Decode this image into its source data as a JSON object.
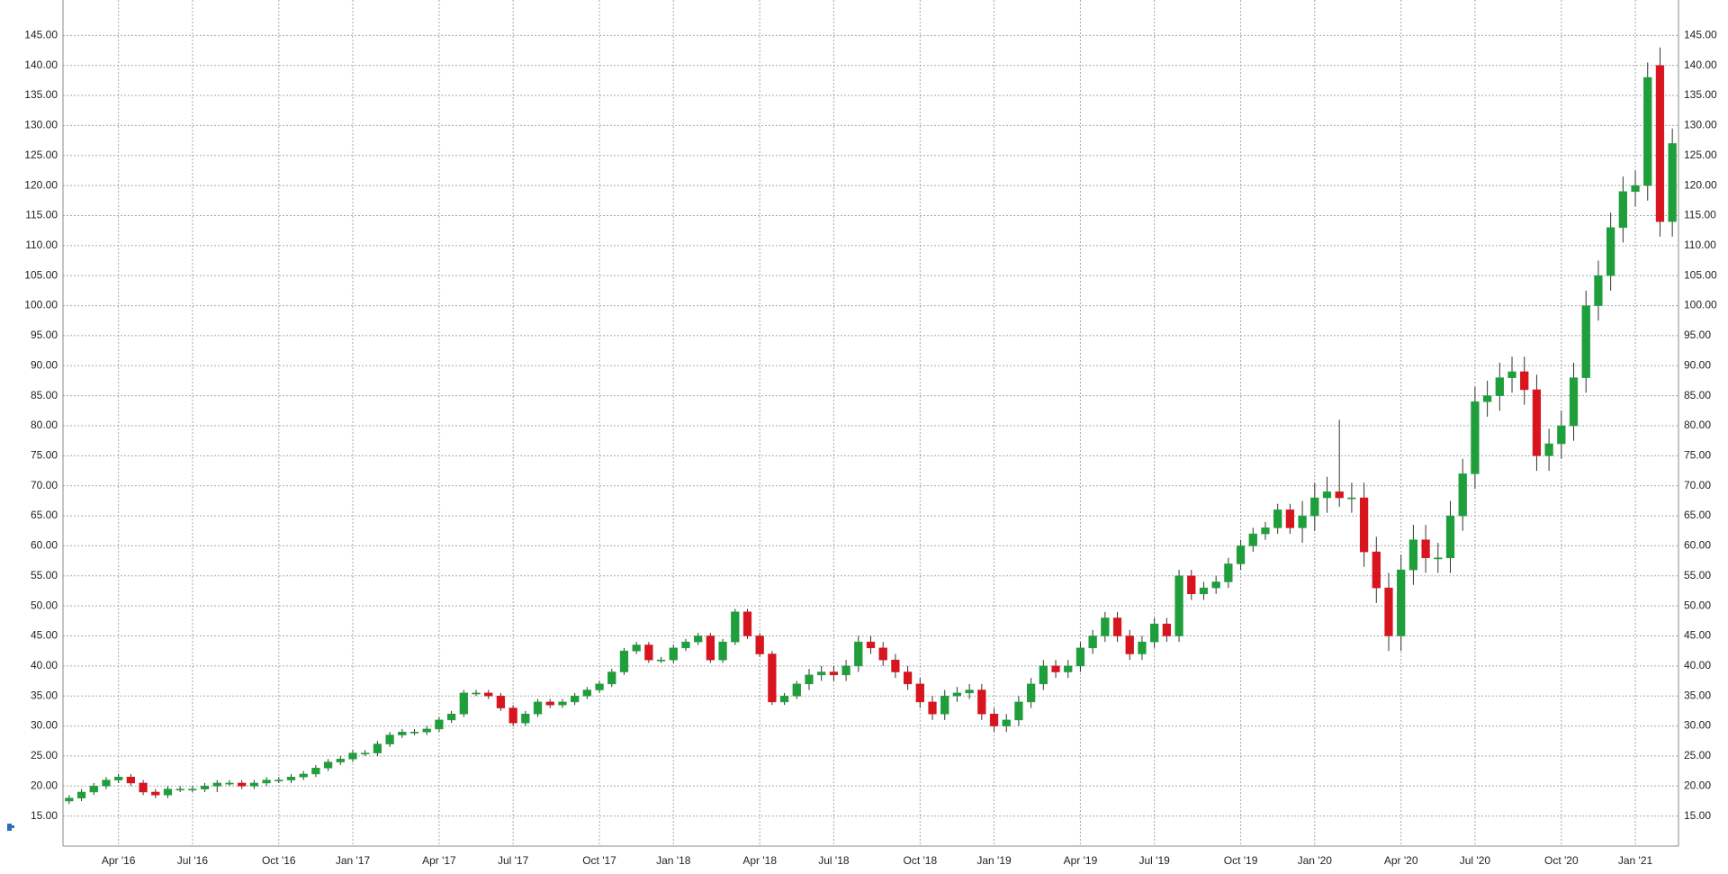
{
  "chart_data": {
    "type": "candlestick",
    "categories": [
      null,
      null,
      null,
      null,
      "Apr '16",
      null,
      null,
      null,
      null,
      null,
      "Jul '16",
      null,
      null,
      null,
      null,
      null,
      null,
      "Oct '16",
      null,
      null,
      null,
      null,
      null,
      "Jan '17",
      null,
      null,
      null,
      null,
      null,
      null,
      "Apr '17",
      null,
      null,
      null,
      null,
      null,
      "Jul '17",
      null,
      null,
      null,
      null,
      null,
      null,
      "Oct '17",
      null,
      null,
      null,
      null,
      null,
      "Jan '18",
      null,
      null,
      null,
      null,
      null,
      null,
      "Apr '18",
      null,
      null,
      null,
      null,
      null,
      "Jul '18",
      null,
      null,
      null,
      null,
      null,
      null,
      "Oct '18",
      null,
      null,
      null,
      null,
      null,
      "Jan '19",
      null,
      null,
      null,
      null,
      null,
      null,
      "Apr '19",
      null,
      null,
      null,
      null,
      null,
      "Jul '19",
      null,
      null,
      null,
      null,
      null,
      null,
      "Oct '19",
      null,
      null,
      null,
      null,
      null,
      "Jan '20",
      null,
      null,
      null,
      null,
      null,
      null,
      "Apr '20",
      null,
      null,
      null,
      null,
      null,
      "Jul '20",
      null,
      null,
      null,
      null,
      null,
      null,
      "Oct '20",
      null,
      null,
      null,
      null,
      null,
      "Jan '21",
      null,
      null,
      null
    ],
    "open": [
      17.5,
      18,
      19,
      20,
      21,
      21.5,
      20.5,
      19,
      18.5,
      19.5,
      19.5,
      19.5,
      20,
      20.5,
      20.5,
      20,
      20.5,
      21,
      21,
      21.5,
      22,
      23,
      24,
      24.5,
      25.5,
      25.5,
      27,
      28.5,
      29,
      29,
      29.5,
      31,
      32,
      35.5,
      35.5,
      35,
      33,
      30.5,
      32,
      34,
      33.5,
      34,
      35,
      36,
      37,
      39,
      42.5,
      43.5,
      41,
      41,
      43,
      44,
      45,
      41,
      44,
      49,
      45,
      42,
      34,
      35,
      37,
      38.5,
      39,
      38.5,
      40,
      44,
      43,
      41,
      39,
      37,
      34,
      32,
      35,
      35.5,
      36,
      32,
      30,
      31,
      34,
      37,
      40,
      39,
      40,
      43,
      45,
      48,
      45,
      42,
      44,
      47,
      45,
      55,
      52,
      53,
      54,
      57,
      60,
      62,
      63,
      66,
      63,
      65,
      68,
      69,
      68,
      68,
      59,
      53,
      45,
      56,
      61,
      58,
      58,
      65,
      72,
      84,
      85,
      88,
      89,
      86,
      75,
      77,
      80,
      88,
      100,
      105,
      113,
      119,
      120,
      140,
      114
    ],
    "high": [
      18.5,
      19.5,
      20.5,
      21.5,
      22,
      22,
      21,
      19.5,
      20,
      20,
      20,
      20.5,
      21,
      21,
      21,
      21,
      21.5,
      21.5,
      22,
      22.5,
      23.5,
      24.5,
      25,
      26,
      26,
      27.5,
      29,
      29.5,
      29.5,
      30,
      31.5,
      32.5,
      36,
      36,
      36,
      35.5,
      33.5,
      32.5,
      34.5,
      34.5,
      34.5,
      35.5,
      36.5,
      37.5,
      39.5,
      43,
      44,
      44,
      41.5,
      43.5,
      44.5,
      45.5,
      45.5,
      44.5,
      49.5,
      49.5,
      45.5,
      42.5,
      35.5,
      37.5,
      39.5,
      40,
      40,
      41,
      45,
      45,
      44,
      42,
      40,
      38,
      35,
      36,
      36.5,
      37,
      37,
      33,
      32,
      35,
      38,
      41,
      41,
      41,
      44,
      46,
      49,
      49,
      46,
      45,
      48,
      48,
      56,
      56,
      54,
      55,
      58,
      61,
      63,
      64,
      67,
      67,
      67.5,
      70.5,
      71.5,
      81,
      70.5,
      70.5,
      61.5,
      55.5,
      58.5,
      63.5,
      63.5,
      60.5,
      67.5,
      74.5,
      86.5,
      87.5,
      90.5,
      91.5,
      91.5,
      88.5,
      79.5,
      82.5,
      90.5,
      102.5,
      107.5,
      115.5,
      121.5,
      122.5,
      140.5,
      143,
      129.5
    ],
    "low": [
      17,
      17.5,
      18.5,
      19.5,
      20.5,
      20,
      18.5,
      18,
      18,
      19,
      19,
      19,
      19,
      20,
      19.5,
      19.5,
      20,
      20.5,
      20.5,
      21,
      21.5,
      22.5,
      23.5,
      24,
      25,
      25,
      26.5,
      28,
      28.5,
      28.5,
      29,
      30.5,
      31.5,
      35,
      34.5,
      32.5,
      30,
      30,
      31.5,
      33,
      33,
      33.5,
      34.5,
      35.5,
      36.5,
      38.5,
      42,
      40.5,
      40.5,
      40.5,
      42.5,
      43.5,
      40.5,
      40.5,
      43.5,
      44.5,
      41.5,
      33.5,
      33.5,
      34.5,
      36,
      37.5,
      37.5,
      37.5,
      39,
      42,
      40,
      38,
      36,
      33,
      31,
      31,
      34,
      34.5,
      31,
      29,
      29,
      30,
      33,
      36,
      38,
      38,
      39,
      42,
      44,
      44,
      41,
      41,
      43,
      44,
      44,
      51,
      51,
      52,
      53,
      56,
      59,
      61,
      62,
      62,
      60.5,
      62.5,
      65.5,
      66.5,
      65.5,
      56.5,
      50.5,
      42.5,
      42.5,
      53.5,
      55.5,
      55.5,
      55.5,
      62.5,
      69.5,
      81.5,
      82.5,
      85.5,
      83.5,
      72.5,
      72.5,
      74.5,
      77.5,
      85.5,
      97.5,
      102.5,
      110.5,
      116.5,
      117.5,
      111.5,
      111.5
    ],
    "close": [
      18,
      19,
      20,
      21,
      21.5,
      20.5,
      19,
      18.5,
      19.5,
      19.5,
      19.5,
      20,
      20.5,
      20.5,
      20,
      20.5,
      21,
      21,
      21.5,
      22,
      23,
      24,
      24.5,
      25.5,
      25.5,
      27,
      28.5,
      29,
      29,
      29.5,
      31,
      32,
      35.5,
      35.5,
      35,
      33,
      30.5,
      32,
      34,
      33.5,
      34,
      35,
      36,
      37,
      39,
      42.5,
      43.5,
      41,
      41,
      43,
      44,
      45,
      41,
      44,
      49,
      45,
      42,
      34,
      35,
      37,
      38.5,
      39,
      38.5,
      40,
      44,
      43,
      41,
      39,
      37,
      34,
      32,
      35,
      35.5,
      36,
      32,
      30,
      31,
      34,
      37,
      40,
      39,
      40,
      43,
      45,
      48,
      45,
      42,
      44,
      47,
      45,
      55,
      52,
      53,
      54,
      57,
      60,
      62,
      63,
      66,
      63,
      65,
      68,
      69,
      68,
      68,
      59,
      53,
      45,
      56,
      61,
      58,
      58,
      65,
      72,
      84,
      85,
      88,
      89,
      86,
      75,
      77,
      80,
      88,
      100,
      105,
      113,
      119,
      120,
      138,
      114,
      127
    ],
    "up_color": "#1f9e3c",
    "down_color": "#d8141e",
    "ylim": [
      10,
      150
    ],
    "yticks": [
      {
        "value": 15,
        "label": "15.00"
      },
      {
        "value": 20,
        "label": "20.00"
      },
      {
        "value": 25,
        "label": "25.00"
      },
      {
        "value": 30,
        "label": "30.00"
      },
      {
        "value": 35,
        "label": "35.00"
      },
      {
        "value": 40,
        "label": "40.00"
      },
      {
        "value": 45,
        "label": "45.00"
      },
      {
        "value": 50,
        "label": "50.00"
      },
      {
        "value": 55,
        "label": "55.00"
      },
      {
        "value": 60,
        "label": "60.00"
      },
      {
        "value": 65,
        "label": "65.00"
      },
      {
        "value": 70,
        "label": "70.00"
      },
      {
        "value": 75,
        "label": "75.00"
      },
      {
        "value": 80,
        "label": "80.00"
      },
      {
        "value": 85,
        "label": "85.00"
      },
      {
        "value": 90,
        "label": "90.00"
      },
      {
        "value": 95,
        "label": "95.00"
      },
      {
        "value": 100,
        "label": "100.00"
      },
      {
        "value": 105,
        "label": "105.00"
      },
      {
        "value": 110,
        "label": "110.00"
      },
      {
        "value": 115,
        "label": "115.00"
      },
      {
        "value": 120,
        "label": "120.00"
      },
      {
        "value": 125,
        "label": "125.00"
      },
      {
        "value": 130,
        "label": "130.00"
      },
      {
        "value": 135,
        "label": "135.00"
      },
      {
        "value": 140,
        "label": "140.00"
      },
      {
        "value": 145,
        "label": "145.00"
      }
    ],
    "grid": true
  }
}
